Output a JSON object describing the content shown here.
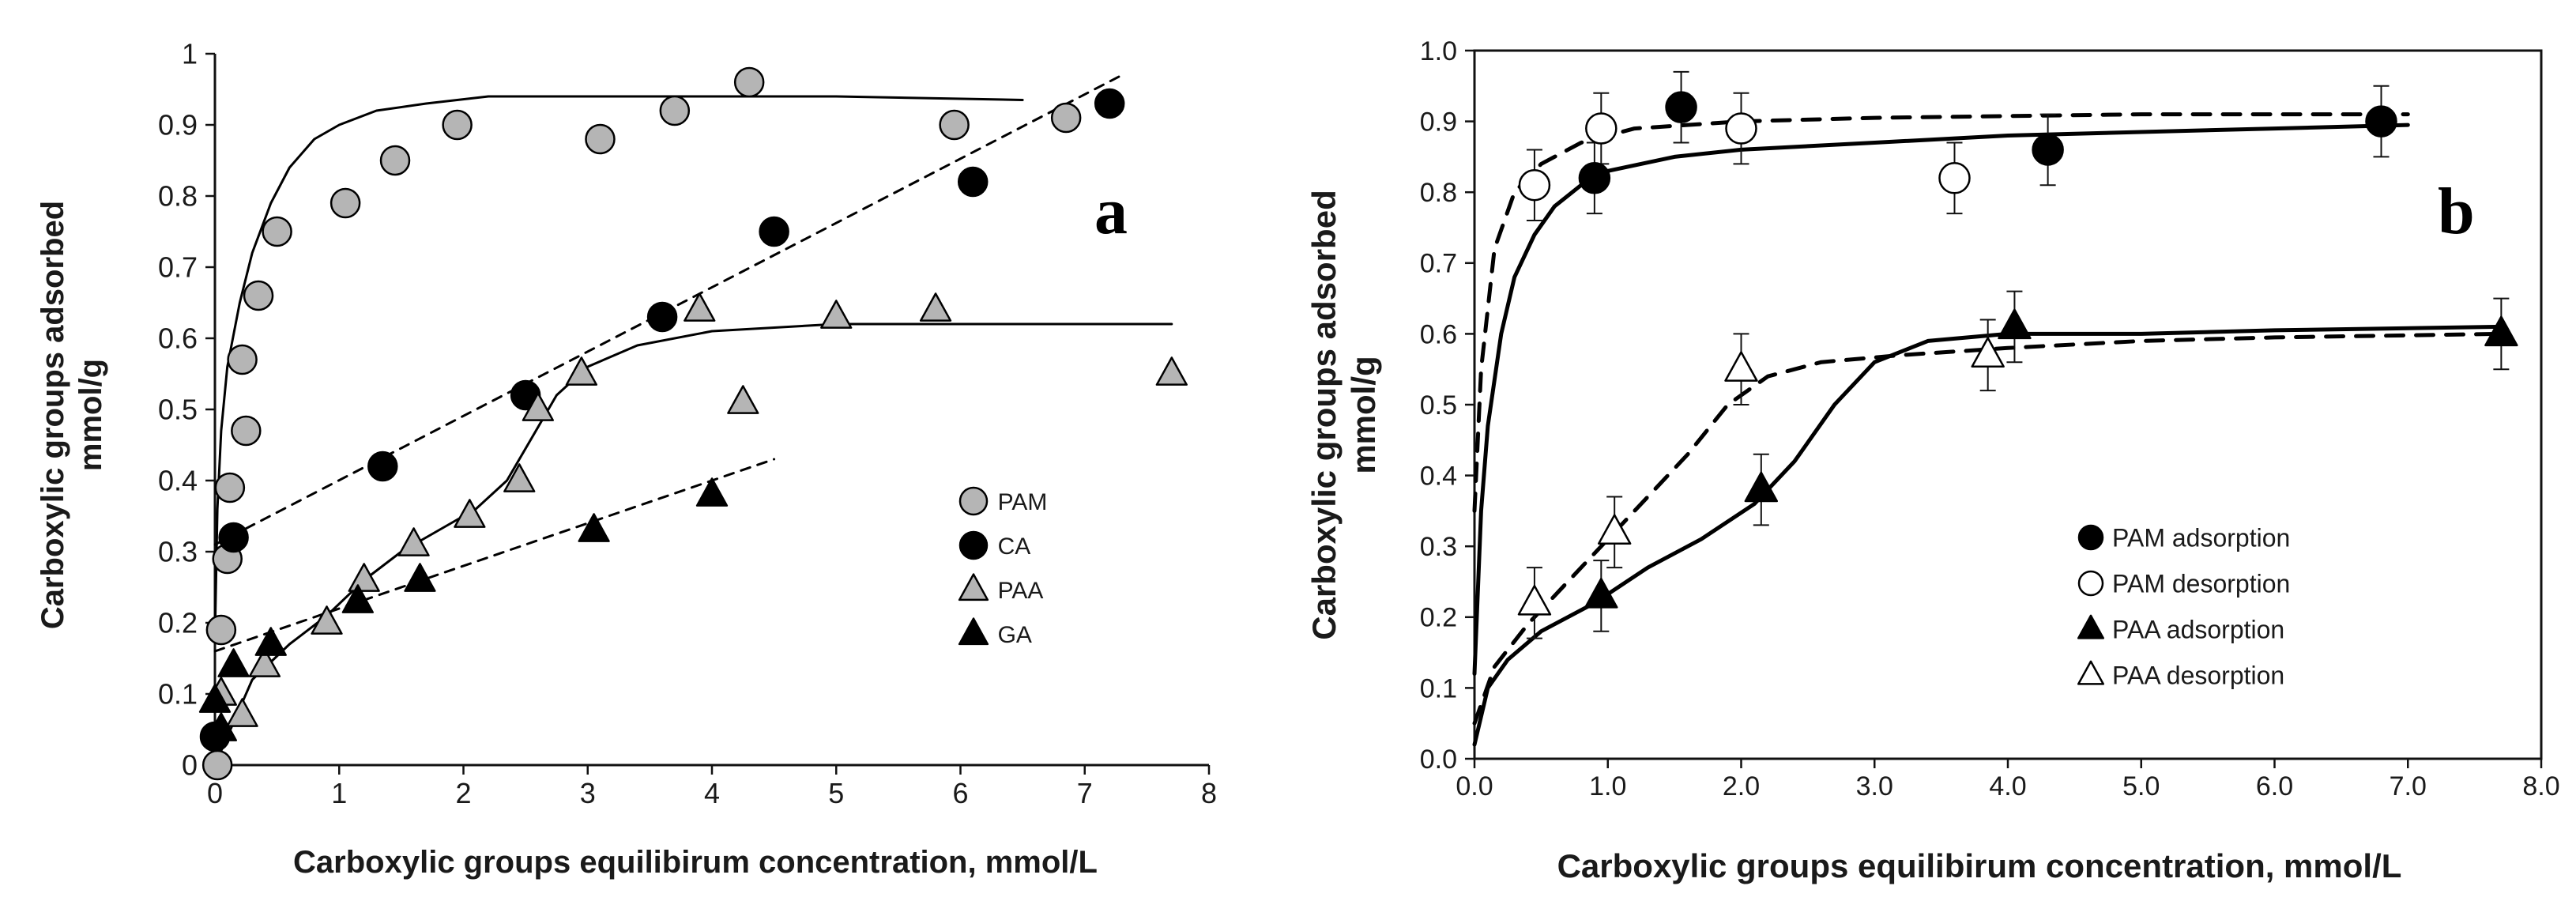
{
  "chart_data": [
    {
      "panel_label": "a",
      "type": "scatter",
      "xlabel": "Carboxylic groups equilibirum concentration, mmol/L",
      "ylabel_lines": [
        "Carboxylic groups adsorbed",
        "mmol/g"
      ],
      "xlim": [
        0,
        8
      ],
      "ylim": [
        0,
        1
      ],
      "xticks": [
        0,
        1,
        2,
        3,
        4,
        5,
        6,
        7,
        8
      ],
      "yticks": [
        0,
        0.1,
        0.2,
        0.3,
        0.4,
        0.5,
        0.6,
        0.7,
        0.8,
        0.9,
        1
      ],
      "ytick_labels": [
        "0",
        "0.1",
        "0.2",
        "0.3",
        "0.4",
        "0.5",
        "0.6",
        "0.7",
        "0.8",
        "0.9",
        "1"
      ],
      "xtick_labels": [
        "0",
        "1",
        "2",
        "3",
        "4",
        "5",
        "6",
        "7",
        "8"
      ],
      "grid": false,
      "legend_position": "bottom-right",
      "series": [
        {
          "name": "PAM",
          "marker": "circle",
          "fill": "#b5b5b5",
          "points": [
            [
              0.02,
              0.0
            ],
            [
              0.05,
              0.19
            ],
            [
              0.1,
              0.29
            ],
            [
              0.12,
              0.39
            ],
            [
              0.25,
              0.47
            ],
            [
              0.22,
              0.57
            ],
            [
              0.35,
              0.66
            ],
            [
              0.5,
              0.75
            ],
            [
              1.05,
              0.79
            ],
            [
              1.45,
              0.85
            ],
            [
              1.95,
              0.9
            ],
            [
              3.1,
              0.88
            ],
            [
              3.7,
              0.92
            ],
            [
              4.3,
              0.96
            ],
            [
              5.95,
              0.9
            ],
            [
              6.85,
              0.91
            ]
          ]
        },
        {
          "name": "CA",
          "marker": "circle",
          "fill": "#000000",
          "points": [
            [
              0.0,
              0.04
            ],
            [
              0.15,
              0.32
            ],
            [
              1.35,
              0.42
            ],
            [
              2.5,
              0.52
            ],
            [
              3.6,
              0.63
            ],
            [
              4.5,
              0.75
            ],
            [
              6.1,
              0.82
            ],
            [
              7.2,
              0.93
            ]
          ]
        },
        {
          "name": "PAA",
          "marker": "triangle",
          "fill": "#b5b5b5",
          "points": [
            [
              0.05,
              0.1
            ],
            [
              0.22,
              0.07
            ],
            [
              0.4,
              0.14
            ],
            [
              0.9,
              0.2
            ],
            [
              1.2,
              0.26
            ],
            [
              1.6,
              0.31
            ],
            [
              2.05,
              0.35
            ],
            [
              2.45,
              0.4
            ],
            [
              2.6,
              0.5
            ],
            [
              2.95,
              0.55
            ],
            [
              3.9,
              0.64
            ],
            [
              4.25,
              0.51
            ],
            [
              5.0,
              0.63
            ],
            [
              5.8,
              0.64
            ],
            [
              7.7,
              0.55
            ]
          ]
        },
        {
          "name": "GA",
          "marker": "triangle",
          "fill": "#000000",
          "points": [
            [
              0.0,
              0.09
            ],
            [
              0.05,
              0.05
            ],
            [
              0.15,
              0.14
            ],
            [
              0.45,
              0.17
            ],
            [
              1.15,
              0.23
            ],
            [
              1.65,
              0.26
            ],
            [
              3.05,
              0.33
            ],
            [
              4.0,
              0.38
            ]
          ]
        }
      ],
      "fit_lines": [
        {
          "series": "PAM",
          "style": "solid",
          "points": [
            [
              0,
              0.18
            ],
            [
              0.02,
              0.36
            ],
            [
              0.05,
              0.47
            ],
            [
              0.1,
              0.56
            ],
            [
              0.2,
              0.65
            ],
            [
              0.3,
              0.72
            ],
            [
              0.45,
              0.79
            ],
            [
              0.6,
              0.84
            ],
            [
              0.8,
              0.88
            ],
            [
              1.0,
              0.9
            ],
            [
              1.3,
              0.92
            ],
            [
              1.7,
              0.93
            ],
            [
              2.2,
              0.94
            ],
            [
              3.0,
              0.94
            ],
            [
              4.0,
              0.94
            ],
            [
              5.0,
              0.94
            ],
            [
              6.5,
              0.935
            ]
          ]
        },
        {
          "series": "CA",
          "style": "dashed",
          "points": [
            [
              0,
              0.31
            ],
            [
              7.3,
              0.97
            ]
          ]
        },
        {
          "series": "PAA",
          "style": "solid",
          "points": [
            [
              0,
              0.0
            ],
            [
              0.3,
              0.12
            ],
            [
              0.6,
              0.17
            ],
            [
              0.9,
              0.21
            ],
            [
              1.2,
              0.26
            ],
            [
              1.5,
              0.3
            ],
            [
              1.8,
              0.33
            ],
            [
              2.1,
              0.36
            ],
            [
              2.35,
              0.4
            ],
            [
              2.55,
              0.46
            ],
            [
              2.75,
              0.52
            ],
            [
              3.0,
              0.56
            ],
            [
              3.4,
              0.59
            ],
            [
              4.0,
              0.61
            ],
            [
              5.0,
              0.62
            ],
            [
              7.7,
              0.62
            ]
          ]
        },
        {
          "series": "GA",
          "style": "dashed",
          "points": [
            [
              0,
              0.16
            ],
            [
              4.5,
              0.43
            ]
          ]
        }
      ]
    },
    {
      "panel_label": "b",
      "type": "scatter",
      "xlabel": "Carboxylic groups equilibirum concentration, mmol/L",
      "ylabel_lines": [
        "Carboxylic groups  adsorbed",
        "mmol/g"
      ],
      "xlim": [
        0,
        8
      ],
      "ylim": [
        0,
        1
      ],
      "xticks": [
        0,
        1,
        2,
        3,
        4,
        5,
        6,
        7,
        8
      ],
      "yticks": [
        0,
        0.1,
        0.2,
        0.3,
        0.4,
        0.5,
        0.6,
        0.7,
        0.8,
        0.9,
        1
      ],
      "xtick_labels": [
        "0.0",
        "1.0",
        "2.0",
        "3.0",
        "4.0",
        "5.0",
        "6.0",
        "7.0",
        "8.0"
      ],
      "ytick_labels": [
        "0.0",
        "0.1",
        "0.2",
        "0.3",
        "0.4",
        "0.5",
        "0.6",
        "0.7",
        "0.8",
        "0.9",
        "1.0"
      ],
      "grid": false,
      "legend_position": "bottom-right",
      "error_bar": 0.05,
      "series": [
        {
          "name": "PAM adsorption",
          "marker": "circle",
          "fill": "#000000",
          "points": [
            [
              0.9,
              0.82
            ],
            [
              1.55,
              0.92
            ],
            [
              4.3,
              0.86
            ],
            [
              6.8,
              0.9
            ]
          ]
        },
        {
          "name": "PAM desorption",
          "marker": "circle",
          "fill": "#ffffff",
          "points": [
            [
              0.45,
              0.81
            ],
            [
              0.95,
              0.89
            ],
            [
              2.0,
              0.89
            ],
            [
              3.6,
              0.82
            ]
          ]
        },
        {
          "name": "PAA adsorption",
          "marker": "triangle",
          "fill": "#000000",
          "points": [
            [
              0.95,
              0.23
            ],
            [
              2.15,
              0.38
            ],
            [
              4.05,
              0.61
            ],
            [
              7.7,
              0.6
            ]
          ]
        },
        {
          "name": "PAA desorption",
          "marker": "triangle",
          "fill": "#ffffff",
          "points": [
            [
              0.45,
              0.22
            ],
            [
              1.05,
              0.32
            ],
            [
              2.0,
              0.55
            ],
            [
              3.85,
              0.57
            ]
          ]
        }
      ],
      "fit_lines": [
        {
          "series": "PAM adsorption",
          "style": "solid",
          "points": [
            [
              0,
              0.12
            ],
            [
              0.05,
              0.35
            ],
            [
              0.1,
              0.47
            ],
            [
              0.2,
              0.6
            ],
            [
              0.3,
              0.68
            ],
            [
              0.45,
              0.74
            ],
            [
              0.6,
              0.78
            ],
            [
              0.8,
              0.81
            ],
            [
              1.0,
              0.83
            ],
            [
              1.5,
              0.85
            ],
            [
              2.0,
              0.86
            ],
            [
              3.0,
              0.87
            ],
            [
              4.0,
              0.88
            ],
            [
              5.0,
              0.885
            ],
            [
              6.0,
              0.89
            ],
            [
              7.0,
              0.895
            ]
          ]
        },
        {
          "series": "PAM desorption",
          "style": "dashed",
          "points": [
            [
              0,
              0.35
            ],
            [
              0.05,
              0.55
            ],
            [
              0.15,
              0.72
            ],
            [
              0.3,
              0.8
            ],
            [
              0.5,
              0.84
            ],
            [
              0.8,
              0.87
            ],
            [
              1.2,
              0.89
            ],
            [
              2.0,
              0.9
            ],
            [
              3.0,
              0.905
            ],
            [
              5.0,
              0.91
            ],
            [
              7.0,
              0.91
            ]
          ]
        },
        {
          "series": "PAA adsorption",
          "style": "solid",
          "points": [
            [
              0,
              0.02
            ],
            [
              0.1,
              0.1
            ],
            [
              0.25,
              0.14
            ],
            [
              0.5,
              0.18
            ],
            [
              0.9,
              0.22
            ],
            [
              1.3,
              0.27
            ],
            [
              1.7,
              0.31
            ],
            [
              2.1,
              0.36
            ],
            [
              2.4,
              0.42
            ],
            [
              2.7,
              0.5
            ],
            [
              3.0,
              0.56
            ],
            [
              3.4,
              0.59
            ],
            [
              4.0,
              0.6
            ],
            [
              5.0,
              0.6
            ],
            [
              6.0,
              0.605
            ],
            [
              7.7,
              0.61
            ]
          ]
        },
        {
          "series": "PAA desorption",
          "style": "dashed",
          "points": [
            [
              0,
              0.05
            ],
            [
              0.15,
              0.13
            ],
            [
              0.4,
              0.19
            ],
            [
              0.7,
              0.25
            ],
            [
              1.0,
              0.31
            ],
            [
              1.3,
              0.37
            ],
            [
              1.6,
              0.43
            ],
            [
              1.9,
              0.5
            ],
            [
              2.2,
              0.54
            ],
            [
              2.6,
              0.56
            ],
            [
              3.2,
              0.57
            ],
            [
              4.0,
              0.58
            ],
            [
              5.0,
              0.59
            ],
            [
              6.0,
              0.595
            ],
            [
              7.7,
              0.6
            ]
          ]
        }
      ]
    }
  ]
}
